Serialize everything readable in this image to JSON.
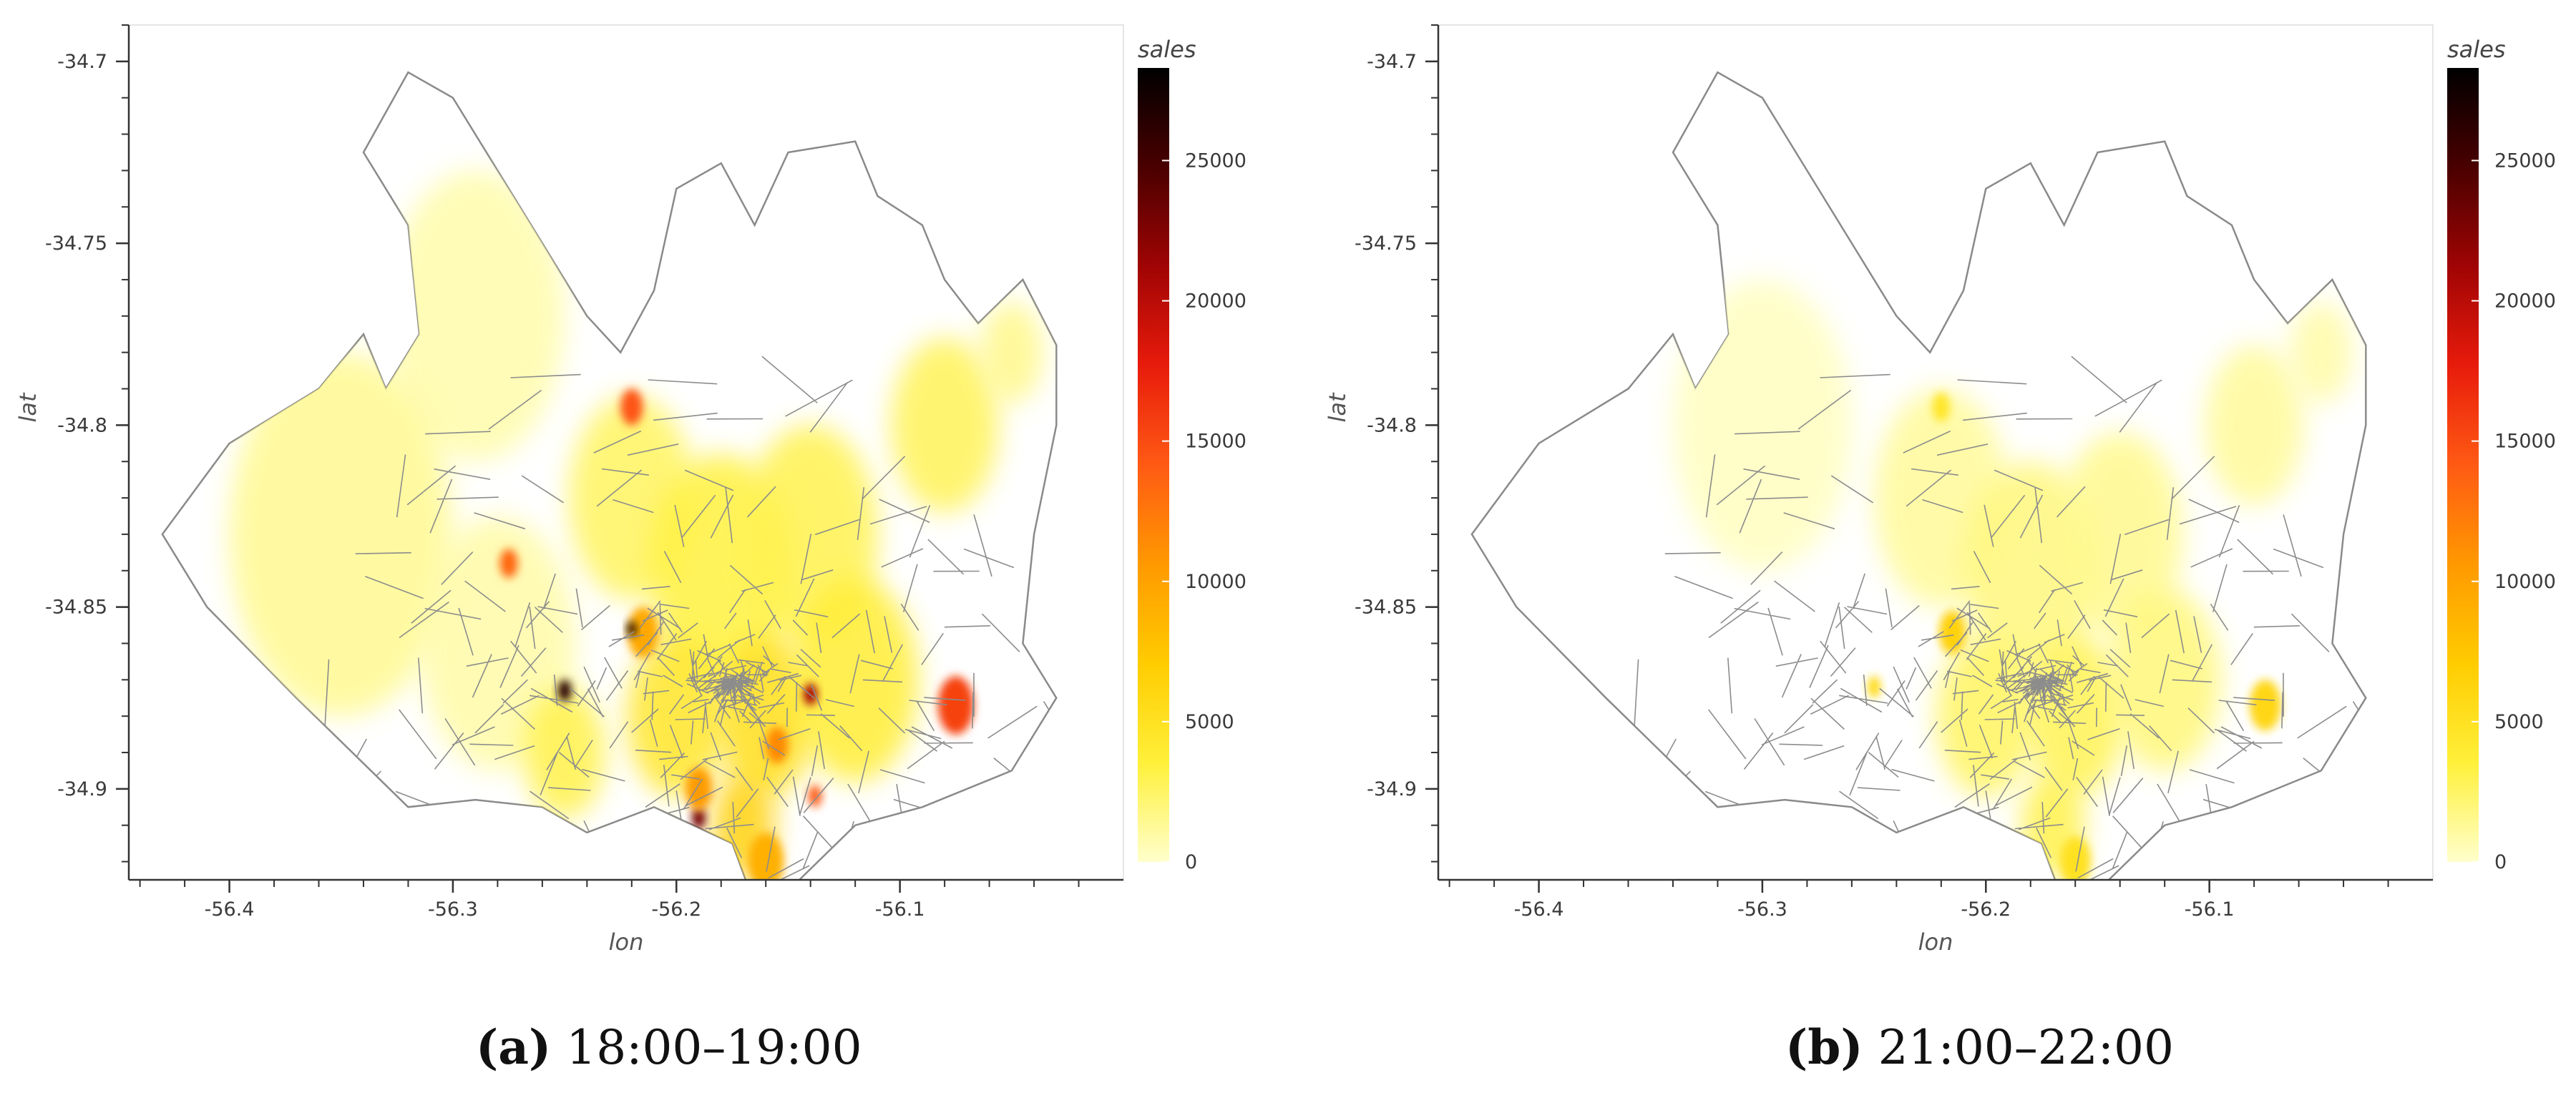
{
  "colorbar": {
    "title": "sales",
    "ticks": [
      0,
      5000,
      10000,
      15000,
      20000,
      25000
    ],
    "range": [
      0,
      28300
    ],
    "stops": [
      "#ffffcc",
      "#fff03a",
      "#ffcc00",
      "#ff9900",
      "#ff5a14",
      "#e81b0b",
      "#a00404",
      "#4a0000",
      "#000000"
    ]
  },
  "axes": {
    "xlabel": "lon",
    "ylabel": "lat",
    "xticks": [
      -56.4,
      -56.3,
      -56.2,
      -56.1
    ],
    "xtick_labels": [
      "-56.4",
      "-56.3",
      "-56.2",
      "-56.1"
    ],
    "yticks": [
      -34.7,
      -34.75,
      -34.8,
      -34.85,
      -34.9
    ],
    "ytick_labels": [
      "-34.7",
      "-34.75",
      "-34.8",
      "-34.85",
      "-34.9"
    ],
    "xlim": [
      -56.445,
      -56.0
    ],
    "ylim": [
      -34.925,
      -34.69
    ]
  },
  "panels": [
    {
      "label": "(a)",
      "time": "18:00–19:00",
      "regions": [
        {
          "lon": -56.29,
          "lat": -34.77,
          "sales": 800,
          "r": 0.04
        },
        {
          "lon": -56.35,
          "lat": -34.83,
          "sales": 1400,
          "r": 0.05
        },
        {
          "lon": -56.28,
          "lat": -34.86,
          "sales": 900,
          "r": 0.035
        },
        {
          "lon": -56.22,
          "lat": -34.82,
          "sales": 2600,
          "r": 0.028
        },
        {
          "lon": -56.18,
          "lat": -34.84,
          "sales": 3400,
          "r": 0.032
        },
        {
          "lon": -56.14,
          "lat": -34.83,
          "sales": 3000,
          "r": 0.03
        },
        {
          "lon": -56.2,
          "lat": -34.88,
          "sales": 4500,
          "r": 0.022
        },
        {
          "lon": -56.16,
          "lat": -34.88,
          "sales": 5200,
          "r": 0.022
        },
        {
          "lon": -56.12,
          "lat": -34.87,
          "sales": 3800,
          "r": 0.028
        },
        {
          "lon": -56.17,
          "lat": -34.91,
          "sales": 6500,
          "r": 0.014
        },
        {
          "lon": -56.08,
          "lat": -34.8,
          "sales": 2800,
          "r": 0.024
        },
        {
          "lon": -56.05,
          "lat": -34.78,
          "sales": 1600,
          "r": 0.014
        },
        {
          "lon": -56.25,
          "lat": -34.89,
          "sales": 3200,
          "r": 0.018
        },
        {
          "lon": -56.215,
          "lat": -34.857,
          "sales": 9500,
          "r": 0.007
        },
        {
          "lon": -56.22,
          "lat": -34.795,
          "sales": 14500,
          "r": 0.005
        },
        {
          "lon": -56.275,
          "lat": -34.838,
          "sales": 13500,
          "r": 0.004
        },
        {
          "lon": -56.25,
          "lat": -34.873,
          "sales": 26500,
          "r": 0.003
        },
        {
          "lon": -56.075,
          "lat": -34.877,
          "sales": 15500,
          "r": 0.008
        },
        {
          "lon": -56.14,
          "lat": -34.874,
          "sales": 21000,
          "r": 0.003
        },
        {
          "lon": -56.138,
          "lat": -34.902,
          "sales": 14000,
          "r": 0.003
        },
        {
          "lon": -56.19,
          "lat": -34.908,
          "sales": 23000,
          "r": 0.003
        },
        {
          "lon": -56.22,
          "lat": -34.856,
          "sales": 27500,
          "r": 0.002
        },
        {
          "lon": -56.16,
          "lat": -34.92,
          "sales": 9000,
          "r": 0.008
        },
        {
          "lon": -56.19,
          "lat": -34.9,
          "sales": 10500,
          "r": 0.006
        },
        {
          "lon": -56.155,
          "lat": -34.888,
          "sales": 11500,
          "r": 0.005
        }
      ]
    },
    {
      "label": "(b)",
      "time": "21:00–22:00",
      "regions": [
        {
          "lon": -56.3,
          "lat": -34.8,
          "sales": 300,
          "r": 0.04
        },
        {
          "lon": -56.22,
          "lat": -34.82,
          "sales": 1200,
          "r": 0.03
        },
        {
          "lon": -56.18,
          "lat": -34.84,
          "sales": 1900,
          "r": 0.03
        },
        {
          "lon": -56.14,
          "lat": -34.83,
          "sales": 1500,
          "r": 0.028
        },
        {
          "lon": -56.2,
          "lat": -34.88,
          "sales": 2600,
          "r": 0.022
        },
        {
          "lon": -56.16,
          "lat": -34.88,
          "sales": 2900,
          "r": 0.022
        },
        {
          "lon": -56.12,
          "lat": -34.87,
          "sales": 2000,
          "r": 0.025
        },
        {
          "lon": -56.17,
          "lat": -34.91,
          "sales": 3200,
          "r": 0.014
        },
        {
          "lon": -56.08,
          "lat": -34.8,
          "sales": 1200,
          "r": 0.022
        },
        {
          "lon": -56.05,
          "lat": -34.78,
          "sales": 900,
          "r": 0.014
        },
        {
          "lon": -56.215,
          "lat": -34.857,
          "sales": 6500,
          "r": 0.006
        },
        {
          "lon": -56.075,
          "lat": -34.877,
          "sales": 6000,
          "r": 0.007
        },
        {
          "lon": -56.25,
          "lat": -34.872,
          "sales": 5500,
          "r": 0.003
        },
        {
          "lon": -56.16,
          "lat": -34.92,
          "sales": 5000,
          "r": 0.007
        },
        {
          "lon": -56.22,
          "lat": -34.795,
          "sales": 4500,
          "r": 0.004
        }
      ]
    }
  ]
}
